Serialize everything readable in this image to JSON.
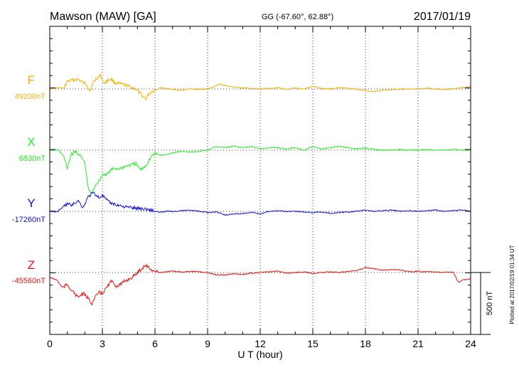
{
  "header": {
    "station": "Mawson (MAW)  [GA]",
    "coords": "GG (-67.60°,  62.88°)",
    "date": "2017/01/19"
  },
  "footer": {
    "plotted": "Plotted at 2017/02/19 01:34  UT"
  },
  "chart_data": {
    "type": "line",
    "xlabel": "U T (hour)",
    "xlim": [
      0,
      24
    ],
    "xticks": [
      "0",
      "3",
      "6",
      "9",
      "12",
      "15",
      "18",
      "21",
      "24"
    ],
    "scale_bar": "500 nT",
    "series": [
      {
        "name": "F",
        "baseline_label": "49200nT",
        "color": "#f7b000",
        "x": [
          0,
          0.5,
          0.8,
          1,
          1.3,
          1.6,
          1.9,
          2.1,
          2.3,
          2.5,
          2.7,
          2.9,
          3.1,
          3.3,
          3.5,
          3.7,
          4,
          4.3,
          4.6,
          4.9,
          5.1,
          5.3,
          5.5,
          5.6,
          5.8,
          6,
          6.3,
          6.6,
          7,
          7.5,
          8,
          8.5,
          9,
          9.3,
          9.7,
          10.2,
          10.8,
          11.3,
          12,
          12.5,
          13,
          13.5,
          14,
          14.5,
          15,
          15.5,
          16,
          16.5,
          17,
          17.5,
          18,
          18.5,
          19,
          19.5,
          20,
          20.5,
          21,
          21.5,
          22,
          22.5,
          23,
          23.5,
          24
        ],
        "values": [
          0,
          10,
          5,
          60,
          70,
          80,
          50,
          40,
          -20,
          60,
          90,
          110,
          40,
          70,
          80,
          50,
          40,
          30,
          15,
          0,
          -30,
          -60,
          -80,
          -50,
          -20,
          -10,
          10,
          5,
          -5,
          -10,
          0,
          -5,
          0,
          15,
          40,
          20,
          10,
          5,
          0,
          5,
          10,
          -5,
          5,
          0,
          20,
          5,
          0,
          10,
          5,
          0,
          -15,
          -20,
          -10,
          -5,
          0,
          -5,
          0,
          5,
          0,
          -5,
          0,
          10,
          20
        ]
      },
      {
        "name": "X",
        "baseline_label": "6830nT",
        "color": "#22ee22",
        "x": [
          0,
          0.5,
          0.8,
          1,
          1.2,
          1.5,
          1.8,
          2,
          2.2,
          2.4,
          2.6,
          2.8,
          3,
          3.3,
          3.6,
          4,
          4.3,
          4.6,
          4.9,
          5.2,
          5.5,
          5.8,
          6,
          6.3,
          6.6,
          7,
          7.5,
          8,
          8.5,
          9,
          9.5,
          10,
          10.5,
          11,
          11.5,
          12,
          12.5,
          13,
          13.5,
          14,
          14.5,
          15,
          15.5,
          16,
          16.5,
          17,
          17.5,
          18,
          18.5,
          19,
          19.5,
          20,
          20.5,
          21,
          21.5,
          22,
          22.5,
          23,
          23.5,
          24
        ],
        "values": [
          0,
          0,
          -50,
          -150,
          -40,
          -10,
          -60,
          -100,
          -320,
          -350,
          -280,
          -250,
          -200,
          -190,
          -150,
          -150,
          -130,
          -120,
          -110,
          -160,
          -120,
          -50,
          -30,
          -40,
          -40,
          -20,
          -10,
          -15,
          -10,
          0,
          30,
          20,
          30,
          20,
          30,
          10,
          20,
          20,
          10,
          20,
          0,
          30,
          10,
          20,
          30,
          20,
          10,
          20,
          5,
          0,
          0,
          5,
          0,
          0,
          5,
          0,
          0,
          5,
          0,
          0
        ]
      },
      {
        "name": "Y",
        "baseline_label": "-17260nT",
        "color": "#1010dd",
        "x": [
          0,
          0.4,
          0.8,
          1,
          1.3,
          1.6,
          1.9,
          2.2,
          2.5,
          2.8,
          3,
          3.3,
          3.6,
          3.9,
          4.2,
          4.6,
          5,
          5.4,
          5.8,
          6.2,
          6.6,
          7,
          7.5,
          8,
          8.5,
          9,
          9.5,
          10,
          10.5,
          11,
          11.5,
          12,
          12.5,
          13,
          13.5,
          14,
          14.5,
          15,
          15.5,
          16,
          16.5,
          17,
          17.5,
          18,
          18.5,
          19,
          19.5,
          20,
          20.5,
          21,
          21.5,
          22,
          22.5,
          23,
          23.5,
          24
        ],
        "values": [
          0,
          -5,
          40,
          60,
          50,
          90,
          30,
          120,
          150,
          110,
          130,
          80,
          60,
          50,
          40,
          30,
          25,
          20,
          10,
          -10,
          0,
          0,
          5,
          10,
          0,
          -10,
          -5,
          -30,
          -20,
          -20,
          -10,
          -20,
          0,
          5,
          0,
          0,
          -5,
          -10,
          -5,
          -15,
          -10,
          -5,
          0,
          10,
          0,
          5,
          10,
          0,
          5,
          0,
          5,
          10,
          0,
          5,
          10,
          0
        ]
      },
      {
        "name": "Z",
        "baseline_label": "-45560nT",
        "color": "#ee1010",
        "x": [
          0,
          0.4,
          0.7,
          1,
          1.3,
          1.6,
          1.9,
          2.2,
          2.4,
          2.6,
          2.8,
          3,
          3.2,
          3.5,
          3.8,
          4.1,
          4.4,
          4.7,
          5,
          5.3,
          5.5,
          5.7,
          6,
          6.3,
          6.6,
          7,
          7.5,
          8,
          8.5,
          9,
          9.5,
          10,
          10.5,
          11,
          11.5,
          12,
          12.5,
          13,
          13.5,
          14,
          14.5,
          15,
          15.5,
          16,
          16.5,
          17,
          17.5,
          18,
          18.5,
          19,
          19.5,
          20,
          20.5,
          21,
          21.5,
          22,
          22.5,
          23,
          23.3,
          23.6,
          24
        ],
        "values": [
          -40,
          -60,
          -120,
          -100,
          -150,
          -200,
          -170,
          -210,
          -250,
          -200,
          -160,
          -170,
          -130,
          -70,
          -110,
          -90,
          -60,
          -40,
          0,
          40,
          60,
          30,
          10,
          0,
          5,
          10,
          5,
          10,
          5,
          0,
          -20,
          -20,
          -10,
          -15,
          -5,
          0,
          5,
          10,
          -5,
          0,
          5,
          -5,
          0,
          5,
          0,
          10,
          15,
          40,
          30,
          20,
          25,
          20,
          5,
          10,
          5,
          5,
          0,
          5,
          -80,
          -60,
          -50
        ]
      }
    ]
  }
}
